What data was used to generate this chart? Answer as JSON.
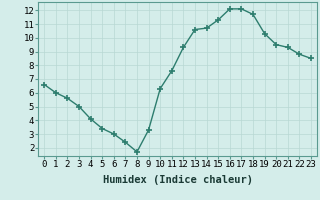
{
  "x": [
    0,
    1,
    2,
    3,
    4,
    5,
    6,
    7,
    8,
    9,
    10,
    11,
    12,
    13,
    14,
    15,
    16,
    17,
    18,
    19,
    20,
    21,
    22,
    23
  ],
  "y": [
    6.6,
    6.0,
    5.6,
    5.0,
    4.1,
    3.4,
    3.0,
    2.4,
    1.7,
    3.3,
    6.3,
    7.6,
    9.3,
    10.6,
    10.7,
    11.3,
    12.1,
    12.1,
    11.7,
    10.3,
    9.5,
    9.3,
    8.8,
    8.5
  ],
  "line_color": "#2d7d6e",
  "marker": "+",
  "markersize": 5,
  "markeredgewidth": 1.2,
  "linewidth": 1.0,
  "bg_color": "#d4edea",
  "grid_color": "#b8d8d4",
  "xlabel": "Humidex (Indice chaleur)",
  "xlabel_fontsize": 7.5,
  "tick_fontsize": 6.5,
  "xlim": [
    -0.5,
    23.5
  ],
  "ylim": [
    1.4,
    12.6
  ],
  "yticks": [
    2,
    3,
    4,
    5,
    6,
    7,
    8,
    9,
    10,
    11,
    12
  ],
  "xticks": [
    0,
    1,
    2,
    3,
    4,
    5,
    6,
    7,
    8,
    9,
    10,
    11,
    12,
    13,
    14,
    15,
    16,
    17,
    18,
    19,
    20,
    21,
    22,
    23
  ]
}
